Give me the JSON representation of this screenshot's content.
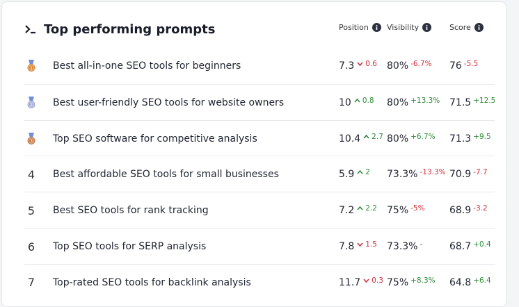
{
  "header": {
    "title": "Top performing prompts",
    "columns": [
      "Position",
      "Visibility",
      "Score"
    ]
  },
  "rows": [
    {
      "rank": "1",
      "medal_color": "#d9893b",
      "prompt": "Best all-in-one SEO tools for beginners",
      "position": "7.3",
      "position_change": {
        "text": "0.6",
        "trend": "down"
      },
      "visibility": "80%",
      "visibility_change": {
        "text": "-6.7%",
        "trend": "down"
      },
      "score": "76",
      "score_change": {
        "text": "-5.5",
        "trend": "down"
      }
    },
    {
      "rank": "2",
      "medal_color": "#a9a9d6",
      "prompt": "Best user-friendly SEO tools for website owners",
      "position": "10",
      "position_change": {
        "text": "0.8",
        "trend": "up"
      },
      "visibility": "80%",
      "visibility_change": {
        "text": "+13.3%",
        "trend": "up"
      },
      "score": "71.5",
      "score_change": {
        "text": "+12.5",
        "trend": "up"
      }
    },
    {
      "rank": "3",
      "medal_color": "#c77a48",
      "prompt": "Top SEO software for competitive analysis",
      "position": "10.4",
      "position_change": {
        "text": "2.7",
        "trend": "up"
      },
      "visibility": "80%",
      "visibility_change": {
        "text": "+6.7%",
        "trend": "up"
      },
      "score": "71.3",
      "score_change": {
        "text": "+9.5",
        "trend": "up"
      }
    },
    {
      "rank": "4",
      "prompt": "Best affordable SEO tools for small businesses",
      "position": "5.9",
      "position_change": {
        "text": "2",
        "trend": "up"
      },
      "visibility": "73.3%",
      "visibility_change": {
        "text": "-13.3%",
        "trend": "down"
      },
      "score": "70.9",
      "score_change": {
        "text": "-7.7",
        "trend": "down"
      }
    },
    {
      "rank": "5",
      "prompt": "Best SEO tools for rank tracking",
      "position": "7.2",
      "position_change": {
        "text": "2.2",
        "trend": "up"
      },
      "visibility": "75%",
      "visibility_change": {
        "text": "-5%",
        "trend": "down"
      },
      "score": "68.9",
      "score_change": {
        "text": "-3.2",
        "trend": "down"
      }
    },
    {
      "rank": "6",
      "prompt": "Top SEO tools for SERP analysis",
      "position": "7.8",
      "position_change": {
        "text": "1.5",
        "trend": "down"
      },
      "visibility": "73.3%",
      "visibility_change": {
        "text": "-",
        "trend": "neutral"
      },
      "score": "68.7",
      "score_change": {
        "text": "+0.4",
        "trend": "up"
      }
    },
    {
      "rank": "7",
      "prompt": "Top-rated SEO tools for backlink analysis",
      "position": "11.7",
      "position_change": {
        "text": "0.3",
        "trend": "down"
      },
      "visibility": "75%",
      "visibility_change": {
        "text": "+8.3%",
        "trend": "up"
      },
      "score": "64.8",
      "score_change": {
        "text": "+6.4",
        "trend": "up"
      }
    }
  ]
}
